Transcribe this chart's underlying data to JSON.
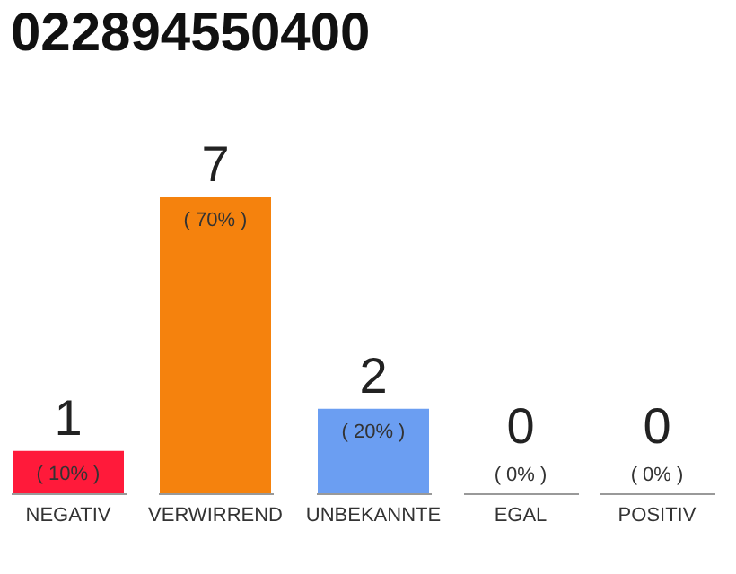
{
  "chart_data": {
    "type": "bar",
    "title": "022894550400",
    "categories": [
      "NEGATIV",
      "VERWIRREND",
      "UNBEKANNTE",
      "EGAL",
      "POSITIV"
    ],
    "values": [
      10,
      70,
      20,
      0,
      0
    ],
    "colors": [
      "#ff1a3a",
      "#f5820d",
      "#6b9ef2",
      "#cccccc",
      "#cccccc"
    ],
    "value_labels": [
      "( 10% )",
      "( 70% )",
      "( 20% )",
      "( 0% )",
      "( 0% )"
    ],
    "annotations": [
      {
        "text": "1",
        "x": "NEGATIV",
        "y": 10
      },
      {
        "text": "7",
        "x": "VERWIRREND",
        "y": 70
      },
      {
        "text": "2",
        "x": "UNBEKANNTE",
        "y": 20
      },
      {
        "text": "0",
        "x": "EGAL",
        "y": 0
      },
      {
        "text": "0",
        "x": "POSITIV",
        "y": 0
      }
    ]
  }
}
